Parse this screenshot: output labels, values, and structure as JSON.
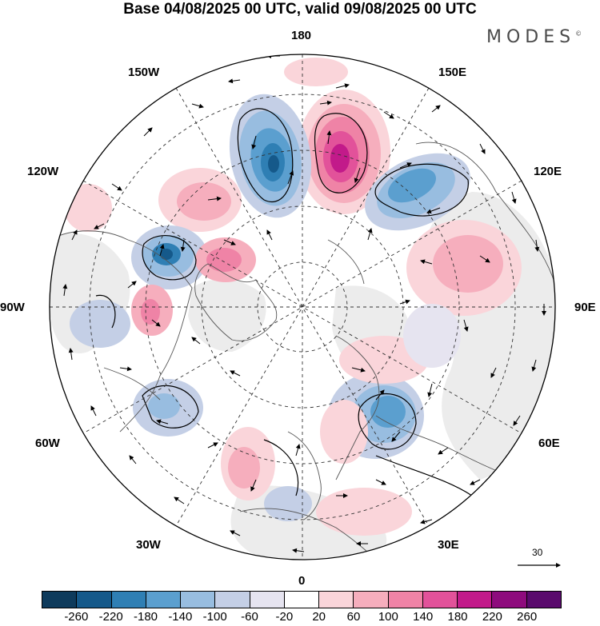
{
  "title": "Base 04/08/2025 00 UTC, valid 09/08/2025 00 UTC",
  "logo": {
    "text": "MODES",
    "mark": "©"
  },
  "longitude_labels": {
    "n180": "180",
    "e150": "150E",
    "w150": "150W",
    "e120": "120E",
    "w120": "120W",
    "e90": "90E",
    "w90": "90W",
    "e60": "60E",
    "w60": "60W",
    "e30": "30E",
    "w30": "30W",
    "s0": "0"
  },
  "wind_reference": {
    "value": "30"
  },
  "colorbar": {
    "colors": [
      "#0e3b5c",
      "#15598a",
      "#2f7fb4",
      "#5b9fcf",
      "#98bde0",
      "#c4cfe6",
      "#e6e4f0",
      "#ffffff",
      "#fad5da",
      "#f6aebd",
      "#ef83a6",
      "#e2529a",
      "#c21a8a",
      "#8e0b7d",
      "#5a0a6d"
    ],
    "ticks": [
      "-260",
      "-220",
      "-180",
      "-140",
      "-100",
      "-60",
      "-20",
      "20",
      "60",
      "100",
      "140",
      "180",
      "220",
      "260"
    ]
  }
}
